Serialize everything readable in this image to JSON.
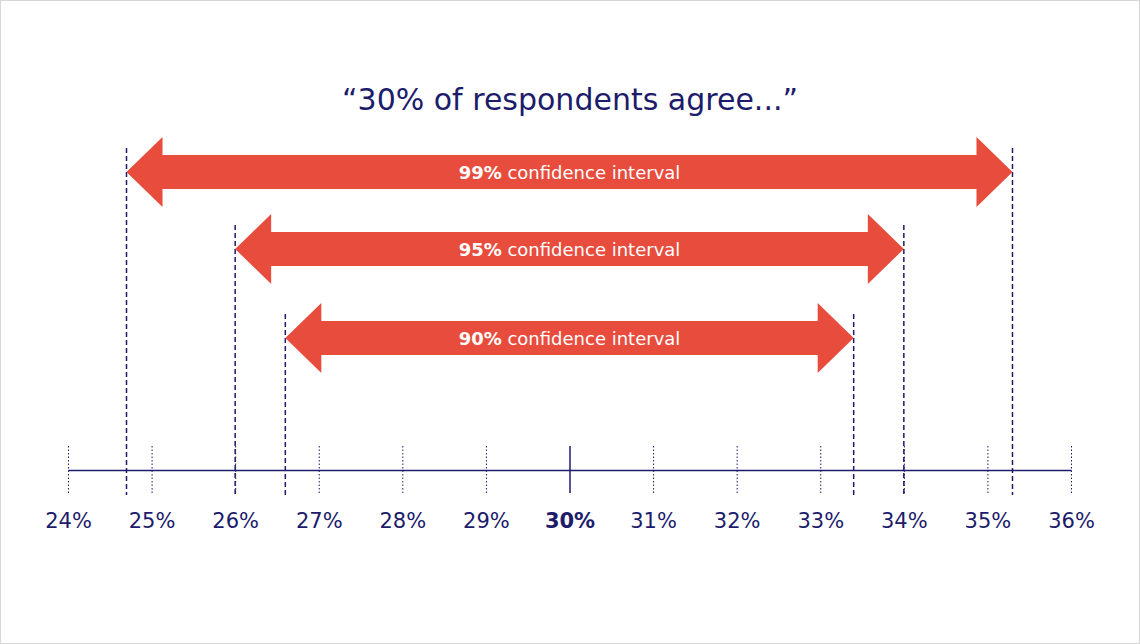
{
  "chart_data": {
    "type": "interval",
    "title": "“30% of respondents agree...”",
    "categories": [
      "99% confidence interval",
      "95% confidence interval",
      "90% confidence interval"
    ],
    "low": [
      24.7,
      26,
      26.6
    ],
    "high": [
      35.3,
      34,
      33.4
    ],
    "estimate": 30,
    "color": "#e84c3d",
    "xlim": [
      24,
      36
    ],
    "xticks": [
      {
        "value": 24,
        "label": "24%"
      },
      {
        "value": 25,
        "label": "25%"
      },
      {
        "value": 26,
        "label": "26%"
      },
      {
        "value": 27,
        "label": "27%"
      },
      {
        "value": 28,
        "label": "28%"
      },
      {
        "value": 29,
        "label": "29%"
      },
      {
        "value": 30,
        "label": "30%"
      },
      {
        "value": 31,
        "label": "31%"
      },
      {
        "value": 32,
        "label": "32%"
      },
      {
        "value": 33,
        "label": "33%"
      },
      {
        "value": 34,
        "label": "34%"
      },
      {
        "value": 35,
        "label": "35%"
      },
      {
        "value": 36,
        "label": "36%"
      }
    ],
    "grid": false
  }
}
